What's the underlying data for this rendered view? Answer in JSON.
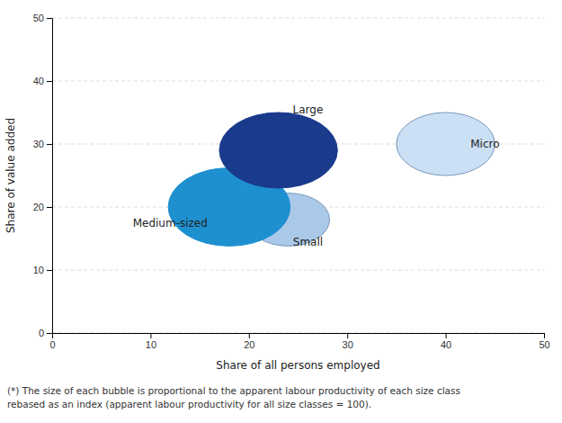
{
  "chart_data": {
    "type": "bubble",
    "xlabel": "Share of all persons employed",
    "ylabel": "Share of value added",
    "x": [
      23,
      18,
      24,
      40
    ],
    "values": [
      29,
      20,
      18,
      30
    ],
    "sizes": [
      6.0,
      6.2,
      4.2,
      5.0
    ],
    "colors": [
      "#1a3a8c",
      "#1e90d0",
      "#aac8e8",
      "#cce0f5"
    ],
    "edge_colors": [
      "#1a3a8c",
      "#1e90d0",
      "#7799bb",
      "#7799bb"
    ],
    "annotations": [
      {
        "text": "Large",
        "x": 26,
        "y": 35.5
      },
      {
        "text": "Medium-sized",
        "x": 12,
        "y": 17.5
      },
      {
        "text": "Small",
        "x": 26,
        "y": 14.5
      },
      {
        "text": "Micro",
        "x": 44,
        "y": 30
      }
    ],
    "footnote": [
      "(*) The size of each bubble is proportional to the apparent labour productivity of each size class",
      "rebased as an index (apparent labour productivity for all size classes = 100)."
    ],
    "xlim": [
      0,
      50
    ],
    "ylim": [
      0,
      50
    ],
    "xticks": [
      0,
      10,
      20,
      30,
      40,
      50
    ],
    "yticks": [
      0,
      10,
      20,
      30,
      40,
      50
    ],
    "grid": "y"
  }
}
